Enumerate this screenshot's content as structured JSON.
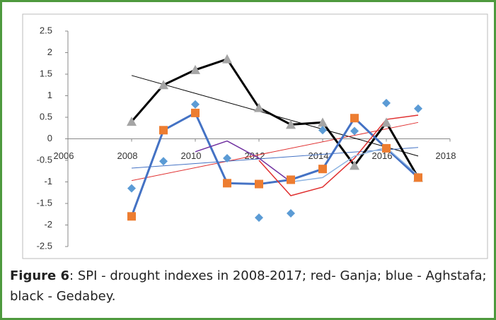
{
  "chart_data": {
    "type": "line",
    "x": [
      2008,
      2009,
      2010,
      2011,
      2012,
      2013,
      2014,
      2015,
      2016,
      2017
    ],
    "series": [
      {
        "color": "#000000",
        "line_width": 3,
        "marker": "triangle",
        "marker_color": "#a5a5a5",
        "values": [
          0.4,
          1.25,
          1.6,
          1.85,
          0.72,
          0.33,
          0.38,
          -0.62,
          0.38,
          -0.9
        ]
      },
      {
        "color": "#4472c4",
        "line_width": 3,
        "marker": "square",
        "marker_color": "#ed7d31",
        "values": [
          -1.8,
          0.2,
          0.6,
          -1.03,
          -1.05,
          -0.95,
          -0.7,
          0.48,
          -0.22,
          -0.9
        ]
      },
      {
        "color": "#5b9bd5",
        "line_width": 0,
        "marker": "diamond",
        "marker_color": "#5b9bd5",
        "values": [
          -1.15,
          -0.52,
          0.8,
          -0.45,
          -1.83,
          -1.73,
          0.2,
          0.18,
          0.83,
          0.7
        ]
      },
      {
        "color": "#e03030",
        "line_width": 1.5,
        "marker": "none",
        "marker_color": "#e03030",
        "values": [
          null,
          null,
          null,
          null,
          -0.5,
          -1.32,
          -1.12,
          -0.45,
          0.45,
          0.55
        ]
      },
      {
        "color": "#7030a0",
        "line_width": 1.5,
        "marker": "none",
        "marker_color": "#7030a0",
        "values": [
          null,
          null,
          -0.3,
          -0.05,
          -0.45,
          -1.0,
          null,
          null,
          null,
          null
        ]
      },
      {
        "color": "#8db4e2",
        "line_width": 1.5,
        "marker": "none",
        "marker_color": "#8db4e2",
        "values": [
          null,
          null,
          null,
          null,
          null,
          -1.0,
          -0.9,
          -0.4,
          -0.2,
          -0.85
        ]
      }
    ],
    "trendlines": [
      {
        "color": "#000000",
        "x": [
          2008,
          2017
        ],
        "values": [
          1.47,
          -0.4
        ]
      },
      {
        "color": "#e03030",
        "x": [
          2008,
          2017
        ],
        "values": [
          -0.97,
          0.38
        ]
      },
      {
        "color": "#4472c4",
        "x": [
          2008,
          2017
        ],
        "values": [
          -0.68,
          -0.2
        ]
      }
    ],
    "xlim": [
      2006,
      2018
    ],
    "xticks": [
      2006,
      2008,
      2010,
      2012,
      2014,
      2016,
      2018
    ],
    "ylim": [
      -2.5,
      2.5
    ],
    "yticks": [
      -2.5,
      -2,
      -1.5,
      -1,
      -0.5,
      0,
      0.5,
      1,
      1.5,
      2,
      2.5
    ],
    "caption": {
      "label": "Figure 6",
      "text": ": SPI - drought indexes in 2008-2017; red- Ganja; blue - Aghstafa; black - Gedabey."
    }
  }
}
